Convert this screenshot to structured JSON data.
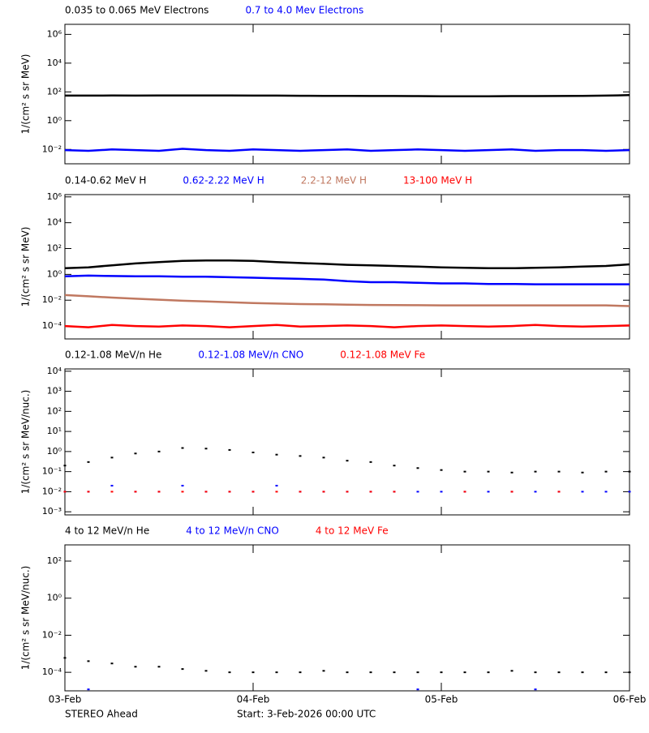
{
  "chart_data": [
    {
      "type": "line",
      "ylabel": "1/(cm² s sr MeV)",
      "log_y": true,
      "xlim": [
        0,
        3
      ],
      "xticks": [
        0,
        1,
        2,
        3
      ],
      "ylim": [
        0.001,
        5000000
      ],
      "yticks": [
        {
          "value": 0.01,
          "label": "10⁻²"
        },
        {
          "value": 1,
          "label": "10⁰"
        },
        {
          "value": 100,
          "label": "10²"
        },
        {
          "value": 10000,
          "label": "10⁴"
        },
        {
          "value": 1000000,
          "label": "10⁶"
        }
      ],
      "x": [
        0,
        0.125,
        0.25,
        0.375,
        0.5,
        0.625,
        0.75,
        0.875,
        1,
        1.125,
        1.25,
        1.375,
        1.5,
        1.625,
        1.75,
        1.875,
        2,
        2.125,
        2.25,
        2.375,
        2.5,
        2.625,
        2.75,
        2.875,
        3
      ],
      "series": [
        {
          "name": "0.035 to 0.065 MeV Electrons",
          "color": "#000000",
          "values": [
            55,
            55,
            56,
            55,
            56,
            57,
            57,
            56,
            55,
            55,
            54,
            53,
            53,
            52,
            52,
            51,
            50,
            50,
            50,
            51,
            51,
            52,
            53,
            55,
            60
          ]
        },
        {
          "name": "0.7 to 4.0 Mev Electrons",
          "color": "#0000ff",
          "values": [
            0.009,
            0.008,
            0.01,
            0.009,
            0.008,
            0.011,
            0.009,
            0.008,
            0.01,
            0.009,
            0.008,
            0.009,
            0.01,
            0.008,
            0.009,
            0.01,
            0.009,
            0.008,
            0.009,
            0.01,
            0.008,
            0.009,
            0.009,
            0.008,
            0.009
          ]
        }
      ]
    },
    {
      "type": "line",
      "ylabel": "1/(cm² s sr MeV)",
      "log_y": true,
      "xlim": [
        0,
        3
      ],
      "xticks": [
        0,
        1,
        2,
        3
      ],
      "ylim": [
        1e-05,
        1500000
      ],
      "yticks": [
        {
          "value": 0.0001,
          "label": "10⁻⁴"
        },
        {
          "value": 0.01,
          "label": "10⁻²"
        },
        {
          "value": 1,
          "label": "10⁰"
        },
        {
          "value": 100,
          "label": "10²"
        },
        {
          "value": 10000,
          "label": "10⁴"
        },
        {
          "value": 1000000,
          "label": "10⁶"
        }
      ],
      "x": [
        0,
        0.125,
        0.25,
        0.375,
        0.5,
        0.625,
        0.75,
        0.875,
        1,
        1.125,
        1.25,
        1.375,
        1.5,
        1.625,
        1.75,
        1.875,
        2,
        2.125,
        2.25,
        2.375,
        2.5,
        2.625,
        2.75,
        2.875,
        3
      ],
      "series": [
        {
          "name": "0.14-0.62 MeV H",
          "color": "#000000",
          "values": [
            3,
            3.5,
            5,
            7,
            9,
            11,
            12,
            12,
            11,
            9,
            7.5,
            6.5,
            5.5,
            5,
            4.5,
            4,
            3.5,
            3.2,
            3,
            3,
            3.2,
            3.5,
            4,
            4.5,
            6
          ]
        },
        {
          "name": "0.62-2.22 MeV H",
          "color": "#0000ff",
          "values": [
            0.7,
            0.8,
            0.75,
            0.7,
            0.7,
            0.65,
            0.65,
            0.6,
            0.55,
            0.5,
            0.45,
            0.4,
            0.3,
            0.25,
            0.25,
            0.22,
            0.2,
            0.2,
            0.18,
            0.18,
            0.17,
            0.17,
            0.17,
            0.17,
            0.17
          ]
        },
        {
          "name": "2.2-12 MeV H",
          "color": "#c07860",
          "values": [
            0.025,
            0.02,
            0.016,
            0.013,
            0.011,
            0.009,
            0.008,
            0.007,
            0.006,
            0.0055,
            0.005,
            0.0048,
            0.0045,
            0.0043,
            0.0042,
            0.0041,
            0.004,
            0.004,
            0.004,
            0.004,
            0.004,
            0.004,
            0.004,
            0.004,
            0.0035
          ]
        },
        {
          "name": "13-100 MeV H",
          "color": "#ff0000",
          "values": [
            0.0001,
            8e-05,
            0.00012,
            0.0001,
            9e-05,
            0.00011,
            0.0001,
            8e-05,
            0.0001,
            0.00012,
            9e-05,
            0.0001,
            0.00011,
            0.0001,
            8e-05,
            0.0001,
            0.00011,
            0.0001,
            9e-05,
            0.0001,
            0.00012,
            0.0001,
            9e-05,
            0.0001,
            0.00011
          ]
        }
      ]
    },
    {
      "type": "scatter",
      "ylabel": "1/(cm² s sr MeV/nuc.)",
      "log_y": true,
      "xlim": [
        0,
        3
      ],
      "xticks": [
        0,
        1,
        2,
        3
      ],
      "ylim": [
        0.0007,
        13000
      ],
      "yticks": [
        {
          "value": 0.001,
          "label": "10⁻³"
        },
        {
          "value": 0.01,
          "label": "10⁻²"
        },
        {
          "value": 0.1,
          "label": "10⁻¹"
        },
        {
          "value": 1,
          "label": "10⁰"
        },
        {
          "value": 10,
          "label": "10¹"
        },
        {
          "value": 100,
          "label": "10²"
        },
        {
          "value": 1000,
          "label": "10³"
        },
        {
          "value": 10000,
          "label": "10⁴"
        }
      ],
      "x": [
        0,
        0.125,
        0.25,
        0.375,
        0.5,
        0.625,
        0.75,
        0.875,
        1,
        1.125,
        1.25,
        1.375,
        1.5,
        1.625,
        1.75,
        1.875,
        2,
        2.125,
        2.25,
        2.375,
        2.5,
        2.625,
        2.75,
        2.875,
        3
      ],
      "series": [
        {
          "name": "0.12-1.08 MeV/n He",
          "color": "#000000",
          "values": [
            0.2,
            0.3,
            0.5,
            0.8,
            1.0,
            1.5,
            1.4,
            1.2,
            0.9,
            0.7,
            0.6,
            0.5,
            0.35,
            0.3,
            0.2,
            0.15,
            0.12,
            0.1,
            0.1,
            0.09,
            0.1,
            0.1,
            0.09,
            0.1,
            0.1
          ]
        },
        {
          "name": "0.12-1.08 MeV/n CNO",
          "color": "#0000ff",
          "values": [
            0.01,
            0.01,
            0.02,
            0.01,
            0.01,
            0.02,
            0.01,
            0.01,
            0.01,
            0.02,
            0.01,
            0.01,
            0.01,
            0.01,
            0.01,
            0.01,
            0.01,
            0.01,
            0.01,
            0.01,
            0.01,
            0.01,
            0.01,
            0.01,
            0.01
          ]
        },
        {
          "name": "0.12-1.08 MeV Fe",
          "color": "#ff0000",
          "values": [
            0.01,
            0.01,
            0.01,
            0.01,
            0.01,
            0.01,
            0.01,
            0.01,
            0.01,
            0.01,
            0.01,
            0.01,
            0.01,
            0.01,
            0.01,
            null,
            null,
            0.01,
            null,
            0.01,
            null,
            0.01,
            null,
            null,
            null
          ]
        }
      ]
    },
    {
      "type": "scatter",
      "ylabel": "1/(cm² s sr MeV/nuc.)",
      "log_y": true,
      "xlim": [
        0,
        3
      ],
      "xticks": [
        {
          "value": 0,
          "label": "03-Feb"
        },
        {
          "value": 1,
          "label": "04-Feb"
        },
        {
          "value": 2,
          "label": "05-Feb"
        },
        {
          "value": 3,
          "label": "06-Feb"
        }
      ],
      "ylim": [
        1e-05,
        750
      ],
      "yticks": [
        {
          "value": 0.0001,
          "label": "10⁻⁴"
        },
        {
          "value": 0.01,
          "label": "10⁻²"
        },
        {
          "value": 1,
          "label": "10⁰"
        },
        {
          "value": 100,
          "label": "10²"
        }
      ],
      "x": [
        0,
        0.125,
        0.25,
        0.375,
        0.5,
        0.625,
        0.75,
        0.875,
        1,
        1.125,
        1.25,
        1.375,
        1.5,
        1.625,
        1.75,
        1.875,
        2,
        2.125,
        2.25,
        2.375,
        2.5,
        2.625,
        2.75,
        2.875,
        3
      ],
      "series": [
        {
          "name": "4 to 12 MeV/n He",
          "color": "#000000",
          "values": [
            0.0006,
            0.0004,
            0.0003,
            0.0002,
            0.0002,
            0.00015,
            0.00012,
            0.0001,
            0.0001,
            0.0001,
            0.0001,
            0.00012,
            0.0001,
            0.0001,
            0.0001,
            0.0001,
            0.0001,
            0.0001,
            0.0001,
            0.00012,
            0.0001,
            0.0001,
            0.0001,
            0.0001,
            0.0001
          ]
        },
        {
          "name": "4 to 12 MeV/n CNO",
          "color": "#0000ff",
          "values": [
            null,
            1.2e-05,
            null,
            null,
            null,
            null,
            null,
            null,
            null,
            null,
            null,
            null,
            null,
            null,
            null,
            1.2e-05,
            null,
            null,
            null,
            null,
            1.2e-05,
            null,
            null,
            null,
            null
          ]
        },
        {
          "name": "4 to 12 MeV Fe",
          "color": "#ff0000",
          "values": [
            null,
            null,
            null,
            null,
            null,
            null,
            null,
            null,
            null,
            null,
            null,
            null,
            null,
            null,
            null,
            null,
            null,
            null,
            null,
            null,
            null,
            null,
            null,
            null,
            null
          ]
        }
      ]
    }
  ],
  "footer": {
    "left": "STEREO Ahead",
    "right": "Start:  3-Feb-2026 00:00 UTC"
  }
}
